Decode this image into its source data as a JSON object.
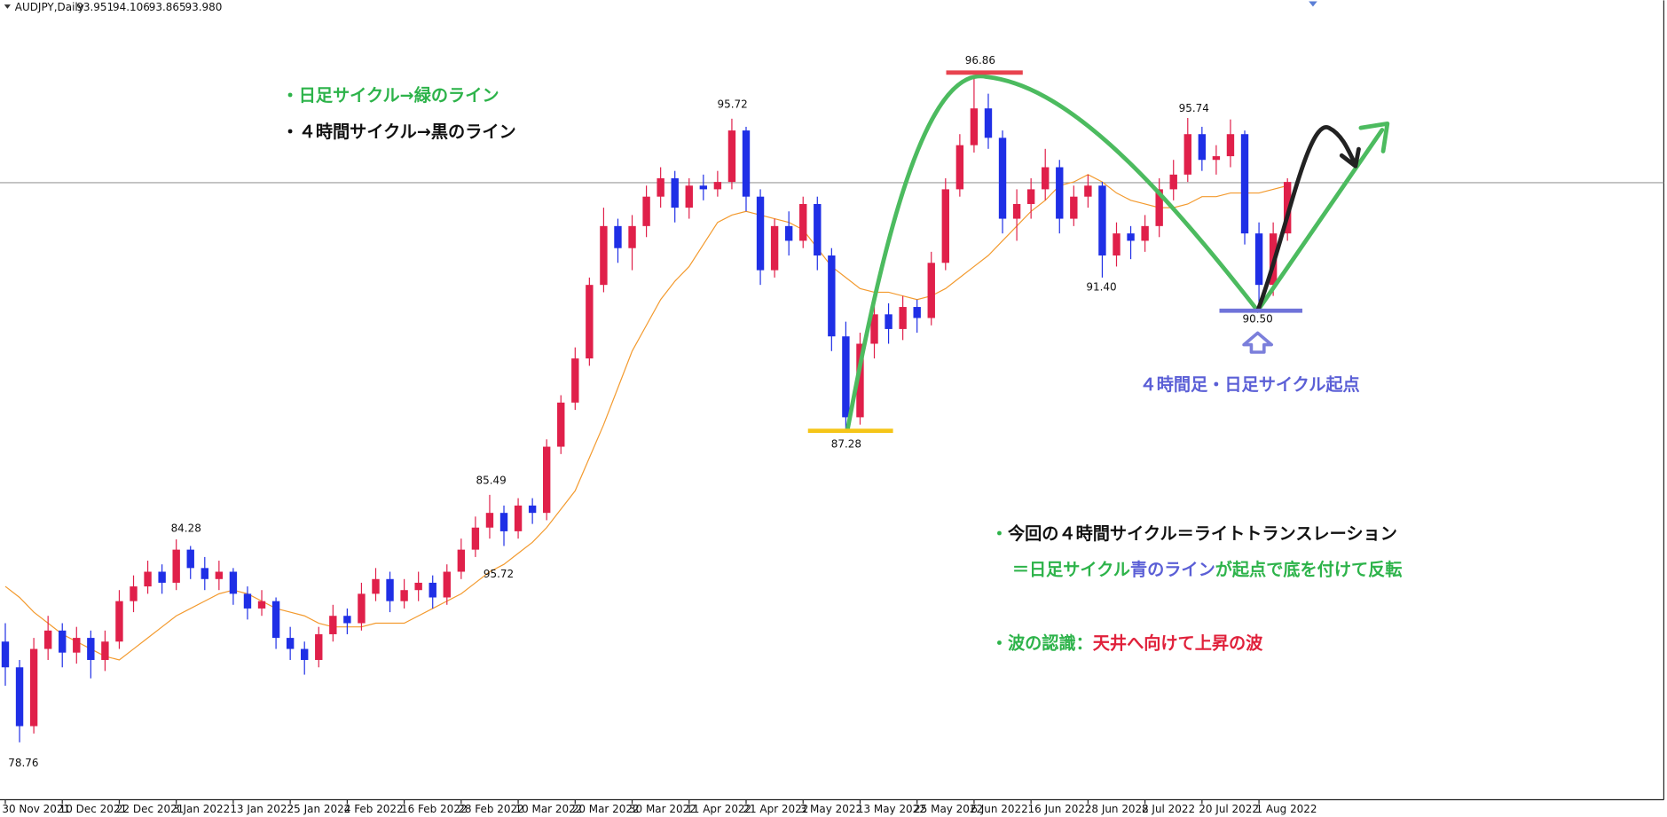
{
  "chart_data": {
    "type": "candlestick",
    "symbol": "AUDJPY,Daily",
    "header_ohlc": [
      {
        "value": 93.951,
        "label": "93.951"
      },
      {
        "value": 94.106,
        "label": "94.106"
      },
      {
        "value": 93.865,
        "label": "93.865"
      },
      {
        "value": 93.98,
        "label": "93.980"
      }
    ],
    "ylim": [
      77.2,
      98.94
    ],
    "up_color": "#e0204a",
    "down_color": "#1f2fe6",
    "ma_color": "#f39a2e",
    "current_line_color": "#9a9a9a",
    "xticks": [
      "30 Nov 2021",
      "10 Dec 2021",
      "22 Dec 2021",
      "3 Jan 2022",
      "13 Jan 2022",
      "25 Jan 2022",
      "4 Feb 2022",
      "16 Feb 2022",
      "28 Feb 2022",
      "10 Mar 2022",
      "20 Mar 2022",
      "30 Mar 2022",
      "11 Apr 2022",
      "21 Apr 2022",
      "3 May 2022",
      "13 May 2022",
      "25 May 2022",
      "6 Jun 2022",
      "16 Jun 2022",
      "28 Jun 2022",
      "8 Jul 2022",
      "20 Jul 2022",
      "1 Aug 2022"
    ],
    "candles": [
      [
        81.5,
        82.0,
        80.3,
        80.8
      ],
      [
        80.8,
        81.0,
        78.76,
        79.2
      ],
      [
        79.2,
        81.6,
        79.0,
        81.3
      ],
      [
        81.3,
        82.2,
        81.0,
        81.8
      ],
      [
        81.8,
        82.0,
        80.8,
        81.2
      ],
      [
        81.2,
        81.9,
        80.9,
        81.6
      ],
      [
        81.6,
        81.8,
        80.5,
        81.0
      ],
      [
        81.0,
        81.8,
        80.7,
        81.5
      ],
      [
        81.5,
        82.9,
        81.3,
        82.6
      ],
      [
        82.6,
        83.3,
        82.3,
        83.0
      ],
      [
        83.0,
        83.7,
        82.8,
        83.4
      ],
      [
        83.4,
        83.6,
        82.8,
        83.1
      ],
      [
        83.1,
        84.28,
        82.9,
        84.0
      ],
      [
        84.0,
        84.1,
        83.2,
        83.5
      ],
      [
        83.5,
        83.8,
        82.9,
        83.2
      ],
      [
        83.2,
        83.7,
        82.9,
        83.4
      ],
      [
        83.4,
        83.5,
        82.5,
        82.8
      ],
      [
        82.8,
        83.0,
        82.1,
        82.4
      ],
      [
        82.4,
        82.9,
        82.2,
        82.6
      ],
      [
        82.6,
        82.7,
        81.3,
        81.6
      ],
      [
        81.6,
        81.9,
        81.0,
        81.3
      ],
      [
        81.3,
        81.5,
        80.6,
        81.0
      ],
      [
        81.0,
        81.9,
        80.8,
        81.7
      ],
      [
        81.7,
        82.5,
        81.5,
        82.2
      ],
      [
        82.2,
        82.4,
        81.7,
        82.0
      ],
      [
        82.0,
        83.1,
        81.8,
        82.8
      ],
      [
        82.8,
        83.5,
        82.6,
        83.2
      ],
      [
        83.2,
        83.4,
        82.3,
        82.6
      ],
      [
        82.6,
        83.2,
        82.4,
        82.9
      ],
      [
        82.9,
        83.4,
        82.6,
        83.1
      ],
      [
        83.1,
        83.3,
        82.4,
        82.7
      ],
      [
        82.7,
        83.6,
        82.5,
        83.4
      ],
      [
        83.4,
        84.3,
        83.2,
        84.0
      ],
      [
        84.0,
        84.9,
        83.8,
        84.6
      ],
      [
        84.6,
        85.49,
        84.3,
        85.0
      ],
      [
        85.0,
        85.2,
        84.1,
        84.5
      ],
      [
        84.5,
        85.4,
        84.3,
        85.2
      ],
      [
        85.2,
        85.4,
        84.7,
        85.0
      ],
      [
        85.0,
        87.0,
        84.8,
        86.8
      ],
      [
        86.8,
        88.2,
        86.6,
        88.0
      ],
      [
        88.0,
        89.5,
        87.8,
        89.2
      ],
      [
        89.2,
        91.4,
        89.0,
        91.2
      ],
      [
        91.2,
        93.3,
        91.0,
        92.8
      ],
      [
        92.8,
        93.0,
        91.8,
        92.2
      ],
      [
        92.2,
        93.1,
        91.6,
        92.8
      ],
      [
        92.8,
        93.9,
        92.5,
        93.6
      ],
      [
        93.6,
        94.4,
        93.3,
        94.1
      ],
      [
        94.1,
        94.3,
        92.9,
        93.3
      ],
      [
        93.3,
        94.1,
        93.0,
        93.9
      ],
      [
        93.9,
        94.2,
        93.5,
        93.8
      ],
      [
        93.8,
        94.3,
        93.6,
        94.0
      ],
      [
        94.0,
        95.72,
        93.8,
        95.4
      ],
      [
        95.4,
        95.5,
        93.2,
        93.6
      ],
      [
        93.6,
        93.8,
        91.2,
        91.6
      ],
      [
        91.6,
        93.0,
        91.4,
        92.8
      ],
      [
        92.8,
        93.2,
        92.0,
        92.4
      ],
      [
        92.4,
        93.6,
        92.2,
        93.4
      ],
      [
        93.4,
        93.6,
        91.6,
        92.0
      ],
      [
        92.0,
        92.2,
        89.4,
        89.8
      ],
      [
        89.8,
        90.2,
        87.28,
        87.6
      ],
      [
        87.6,
        89.9,
        87.4,
        89.6
      ],
      [
        89.6,
        90.8,
        89.2,
        90.4
      ],
      [
        90.4,
        90.7,
        89.6,
        90.0
      ],
      [
        90.0,
        90.9,
        89.7,
        90.6
      ],
      [
        90.6,
        90.8,
        89.9,
        90.3
      ],
      [
        90.3,
        92.1,
        90.1,
        91.8
      ],
      [
        91.8,
        94.1,
        91.6,
        93.8
      ],
      [
        93.8,
        95.3,
        93.6,
        95.0
      ],
      [
        95.0,
        96.86,
        94.8,
        96.0
      ],
      [
        96.0,
        96.4,
        94.9,
        95.2
      ],
      [
        95.2,
        95.4,
        92.6,
        93.0
      ],
      [
        93.0,
        93.8,
        92.4,
        93.4
      ],
      [
        93.4,
        94.1,
        93.0,
        93.8
      ],
      [
        93.8,
        94.9,
        93.5,
        94.4
      ],
      [
        94.4,
        94.6,
        92.6,
        93.0
      ],
      [
        93.0,
        93.9,
        92.8,
        93.6
      ],
      [
        93.6,
        94.2,
        93.3,
        93.9
      ],
      [
        93.9,
        94.0,
        91.4,
        92.0
      ],
      [
        92.0,
        92.9,
        91.7,
        92.6
      ],
      [
        92.6,
        92.8,
        91.9,
        92.4
      ],
      [
        92.4,
        93.1,
        92.1,
        92.8
      ],
      [
        92.8,
        94.1,
        92.5,
        93.8
      ],
      [
        93.8,
        94.6,
        93.5,
        94.2
      ],
      [
        94.2,
        95.74,
        94.0,
        95.3
      ],
      [
        95.3,
        95.5,
        94.3,
        94.6
      ],
      [
        94.6,
        95.0,
        94.2,
        94.7
      ],
      [
        94.7,
        95.7,
        94.4,
        95.3
      ],
      [
        95.3,
        95.4,
        92.3,
        92.6
      ],
      [
        92.6,
        92.9,
        90.5,
        91.2
      ],
      [
        91.2,
        92.9,
        90.9,
        92.6
      ],
      [
        92.6,
        94.1,
        92.4,
        94.0
      ]
    ],
    "moving_average": [
      83.0,
      82.7,
      82.3,
      82.0,
      81.7,
      81.5,
      81.3,
      81.1,
      81.0,
      81.3,
      81.6,
      81.9,
      82.2,
      82.4,
      82.6,
      82.8,
      82.9,
      82.8,
      82.6,
      82.4,
      82.3,
      82.2,
      82.0,
      81.9,
      81.9,
      81.9,
      82.0,
      82.0,
      82.0,
      82.2,
      82.4,
      82.6,
      82.8,
      83.1,
      83.4,
      83.6,
      83.9,
      84.2,
      84.6,
      85.1,
      85.6,
      86.5,
      87.4,
      88.4,
      89.4,
      90.1,
      90.8,
      91.3,
      91.7,
      92.3,
      92.9,
      93.1,
      93.2,
      93.1,
      93.0,
      92.9,
      92.7,
      92.2,
      91.7,
      91.4,
      91.1,
      91.0,
      91.0,
      90.9,
      90.8,
      90.9,
      91.1,
      91.4,
      91.7,
      92.0,
      92.4,
      92.8,
      93.2,
      93.5,
      93.9,
      94.0,
      94.2,
      94.0,
      93.7,
      93.5,
      93.4,
      93.3,
      93.3,
      93.4,
      93.6,
      93.6,
      93.7,
      93.7,
      93.7,
      93.8,
      93.9
    ],
    "price_labels": [
      96.86,
      95.72,
      95.74,
      {
        "value": 91.4,
        "label": "91.40"
      },
      {
        "value": 90.5,
        "label": "90.50"
      },
      87.28,
      85.49,
      95.72,
      84.28,
      78.76
    ],
    "annotations": [
      [
        {
          "text": "・日足サイクル→緑のライン",
          "color": "#2db34a"
        }
      ],
      [
        {
          "text": "・４時間サイクル→黒のライン",
          "color": "#111111"
        }
      ],
      [
        {
          "text": "４時間足・日足サイクル起点",
          "color": "#5b5fd6"
        }
      ],
      [
        {
          "text": "・",
          "color": "#2db34a"
        },
        {
          "text": "今回の４時間サイクル＝ライトトランスレーション",
          "color": "#111111"
        }
      ],
      [
        {
          "text": "＝",
          "color": "#2db34a"
        },
        {
          "text": "日足サイクル",
          "color": "#2db34a"
        },
        {
          "text": "青のライン",
          "color": "#5b5fd6"
        },
        {
          "text": "が起点で底を付けて反転",
          "color": "#2db34a"
        }
      ],
      [
        {
          "text": "・波の認識：",
          "color": "#2db34a"
        },
        {
          "text": "天井へ向けて上昇の波",
          "color": "#e0203a"
        }
      ]
    ]
  }
}
